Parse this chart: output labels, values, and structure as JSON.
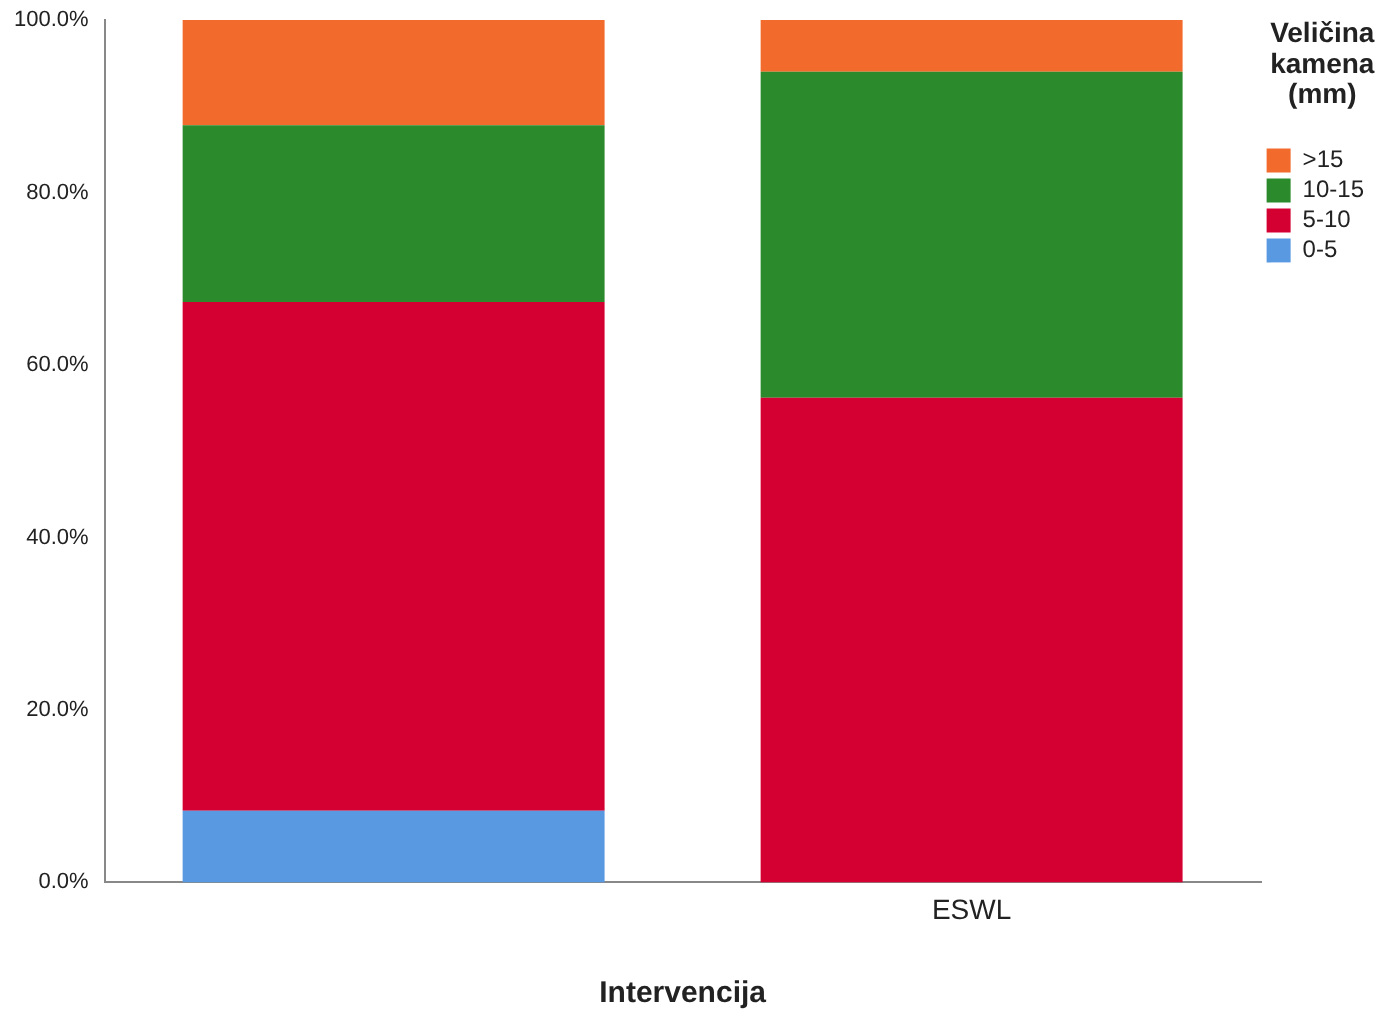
{
  "chart_data": {
    "type": "bar",
    "stacked": true,
    "xlabel": "Intervencija",
    "legend_title": "Veličina kamena (mm)",
    "legend": "right",
    "grid": false,
    "categories": [
      null,
      "ESWL"
    ],
    "series": [
      {
        "name": "0-5",
        "color": "#5899e2",
        "values": [
          8.3,
          0
        ]
      },
      {
        "name": "5-10",
        "color": "#d40032",
        "values": [
          59.0,
          56.2
        ]
      },
      {
        "name": "10-15",
        "color": "#2b8a2b",
        "values": [
          20.5,
          37.8
        ]
      },
      {
        "name": ">15",
        "color": "#f26a2c",
        "values": [
          12.2,
          6.0
        ]
      }
    ],
    "ylim": [
      0,
      100
    ],
    "yticks": [
      {
        "value": 0,
        "label": "0.0%"
      },
      {
        "value": 20,
        "label": "20.0%"
      },
      {
        "value": 40,
        "label": "40.0%"
      },
      {
        "value": 60,
        "label": "60.0%"
      },
      {
        "value": 80,
        "label": "80.0%"
      },
      {
        "value": 100,
        "label": "100.0%"
      }
    ]
  }
}
